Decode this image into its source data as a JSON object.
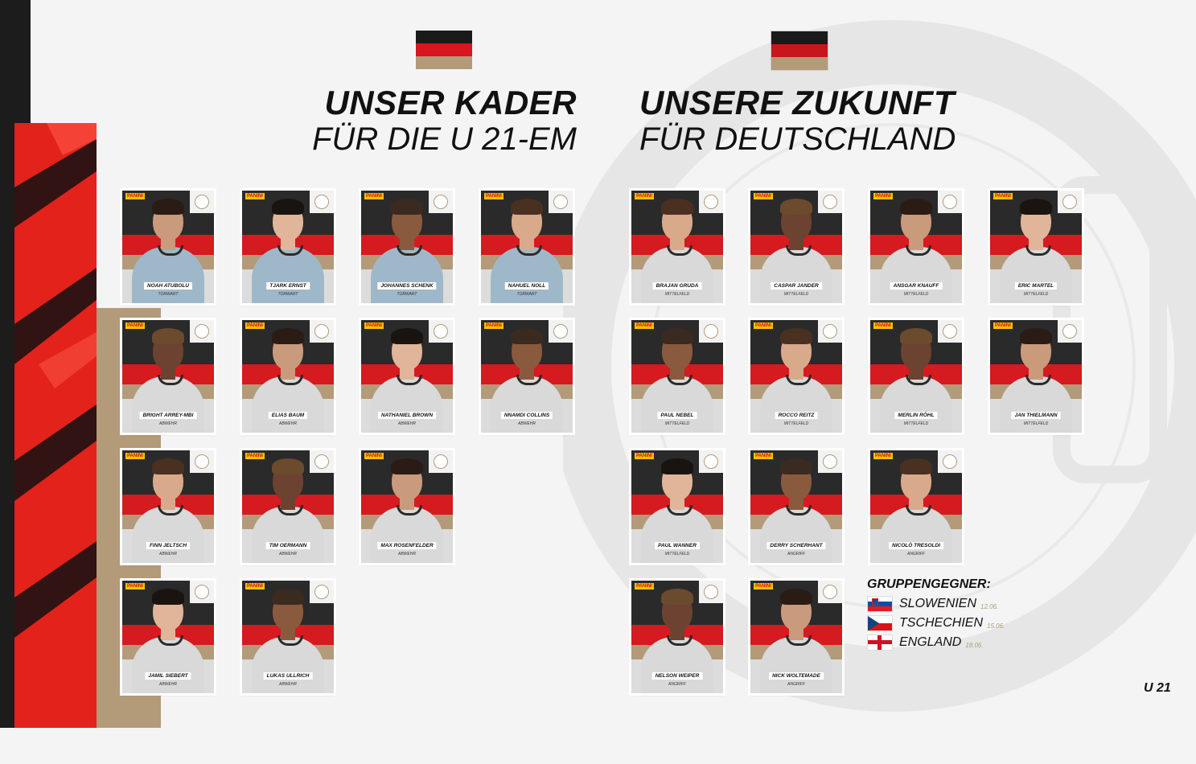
{
  "headings": {
    "left_big": "UNSER KADER",
    "left_small": "FÜR DIE U 21-EM",
    "right_big": "UNSERE ZUKUNFT",
    "right_small": "FÜR DEUTSCHLAND"
  },
  "squad": [
    {
      "name": "NOAH ATUBOLU",
      "position": "TORWART"
    },
    {
      "name": "TJARK ERNST",
      "position": "TORWART"
    },
    {
      "name": "JOHANNES SCHENK",
      "position": "TORWART"
    },
    {
      "name": "NAHUEL NOLL",
      "position": "TORWART"
    },
    {
      "name": "BRIGHT ARREY-MBI",
      "position": "ABWEHR"
    },
    {
      "name": "ELIAS BAUM",
      "position": "ABWEHR"
    },
    {
      "name": "NATHANIEL BROWN",
      "position": "ABWEHR"
    },
    {
      "name": "NNAMDI COLLINS",
      "position": "ABWEHR"
    },
    {
      "name": "FINN JELTSCH",
      "position": "ABWEHR"
    },
    {
      "name": "TIM OERMANN",
      "position": "ABWEHR"
    },
    {
      "name": "MAX ROSENFELDER",
      "position": "ABWEHR"
    },
    {
      "name": "JAMIL SIEBERT",
      "position": "ABWEHR"
    },
    {
      "name": "LUKAS ULLRICH",
      "position": "ABWEHR"
    },
    {
      "name": "BRAJAN GRUDA",
      "position": "MITTELFELD"
    },
    {
      "name": "CASPAR JANDER",
      "position": "MITTELFELD"
    },
    {
      "name": "ANSGAR KNAUFF",
      "position": "MITTELFELD"
    },
    {
      "name": "ERIC MARTEL",
      "position": "MITTELFELD"
    },
    {
      "name": "PAUL NEBEL",
      "position": "MITTELFELD"
    },
    {
      "name": "ROCCO REITZ",
      "position": "MITTELFELD"
    },
    {
      "name": "MERLIN RÖHL",
      "position": "MITTELFELD"
    },
    {
      "name": "JAN THIELMANN",
      "position": "MITTELFELD"
    },
    {
      "name": "PAUL WANNER",
      "position": "MITTELFELD"
    },
    {
      "name": "DERRY SCHERHANT",
      "position": "ANGRIFF"
    },
    {
      "name": "NICOLÒ TRESOLDI",
      "position": "ANGRIFF"
    },
    {
      "name": "NELSON WEIPER",
      "position": "ANGRIFF"
    },
    {
      "name": "NICK WOLTEMADE",
      "position": "ANGRIFF"
    }
  ],
  "sticker_brand": "PANINI",
  "group": {
    "title": "GRUPPENGEGNER:",
    "opponents": [
      {
        "country": "SLOWENIEN",
        "date": "12.06."
      },
      {
        "country": "TSCHECHIEN",
        "date": "15.06."
      },
      {
        "country": "ENGLAND",
        "date": "18.06."
      }
    ]
  },
  "footer_label": "U 21",
  "colors": {
    "red": "#e3221b",
    "gold": "#b39a79",
    "black": "#1c1c1c"
  }
}
